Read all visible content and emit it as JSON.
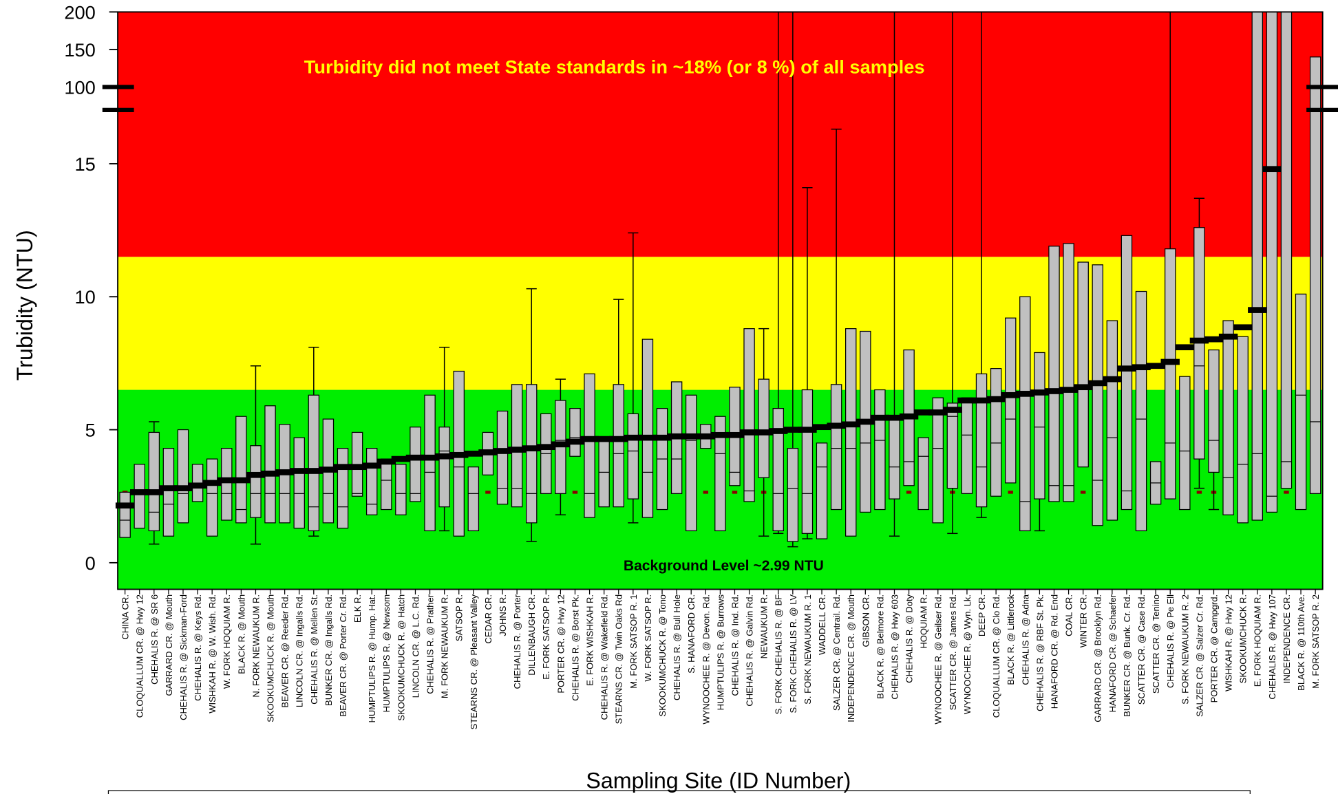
{
  "chart_data": {
    "type": "box",
    "title": "Turbidity did not meet State standards in ~18% (or 8 %) of all samples",
    "annotation": "Background Level ~2.99 NTU",
    "x_label": "Sampling Site (ID Number)",
    "y_label": "Trubidity (NTU)",
    "ylim": [
      -1,
      17
    ],
    "upper_ylim": [
      100,
      200
    ],
    "yticks": [
      0,
      5,
      10,
      15
    ],
    "upper_yticks": [
      100,
      150,
      200
    ],
    "bands": [
      {
        "from": -1,
        "to": 6.5,
        "color": "#00ee00"
      },
      {
        "from": 6.5,
        "to": 11.5,
        "color": "#ffff00"
      },
      {
        "from": 11.5,
        "to": 200,
        "color": "#ff0000"
      }
    ],
    "reference_line": {
      "value": 2.65,
      "color": "#8b0000"
    },
    "box_color": "#c0c0c0",
    "mean_color": "#000000",
    "categories": [
      "CHINA CR.",
      "CLOQUALLUM CR. @ Hwy 12",
      "CHEHALIS R. @ SR 6",
      "GARRARD CR. @ Mouth",
      "CHEHALIS R. @ Sickman-Ford",
      "CHEHALIS R. @ Keys Rd.",
      "WISHKAH R. @ W. Wish. Rd.",
      "W. FORK HOQUIAM R.",
      "BLACK R. @ Mouth",
      "N. FORK NEWAUKUM R.",
      "SKOOKUMCHUCK R. @ Mouth",
      "BEAVER CR. @ Reeder Rd.",
      "LINCOLN CR. @ Ingalls Rd.",
      "CHEHALIS R. @ Mellen St.",
      "BUNKER CR. @ Ingalls Rd.",
      "BEAVER CR. @ Porter Cr. Rd.",
      "ELK R.",
      "HUMPTULIPS R. @ Hump. Hat.",
      "HUMPTULIPS R. @ Newsom",
      "SKOOKUMCHUCK R. @ Hatch",
      "LINCOLN CR. @ L.C. Rd.",
      "CHEHALIS R. @ Prather",
      "M. FORK NEWAUKUM R.",
      "SATSOP R.",
      "STEARNS CR. @ Pleasant Valley",
      "CEDAR CR.",
      "JOHNS R.",
      "CHEHALIS R. @ Porter",
      "DILLENBAUGH CR.",
      "E. FORK SATSOP R.",
      "PORTER CR. @ Hwy 12",
      "CHEHALIS R. @ Borst Pk.",
      "E. FORK WISHKAH R.",
      "CHEHALIS R. @ Wakefield Rd.",
      "STEARNS CR. @ Twin Oaks Rd",
      "M. FORK SATSOP R. 1",
      "W. FORK SATSOP R.",
      "SKOOKUMCHUCK R. @ Tono",
      "CHEHALIS R. @ Bull Hole",
      "S. HANAFORD CR.",
      "WYNOOCHEE R. @ Devon. Rd.",
      "HUMPTULIPS R. @ Burrows",
      "CHEHALIS R. @ Ind. Rd.",
      "CHEHALIS R. @ Galvin Rd.",
      "NEWAUKUM R.",
      "S. FORK CHEHALIS R. @ BF",
      "S. FORK CHEHALIS R. @ LV",
      "S. FORK NEWAUKUM R. 1",
      "WADDELL CR.",
      "SALZER CR. @ Centrail. Rd.",
      "INDEPENDENCE CR. @ Mouth",
      "GIBSON CR.",
      "BLACK R. @ Belmore Rd.",
      "CHEHALIS R. @ Hwy 603",
      "CHEHALIS R. @ Doty",
      "HOQUIAM R.",
      "WYNOOCHEE R. @ Geilser Rd.",
      "SCATTER CR. @ James Rd.",
      "WYNOOCHEE R. @ Wyn. Lk.",
      "DEEP CR.",
      "CLOQUALLUM CR. @ Clo Rd.",
      "BLACK R. @ Littlerock",
      "CHEHALIS R. @ Adna",
      "CHEHALIS R. @ RBF St. Pk.",
      "HANAFORD CR. @ Rd. End",
      "COAL CR.",
      "WINTER CR.",
      "GARRARD CR. @ Brooklyn Rd.",
      "HANAFORD CR. @ Schaefer",
      "BUNKER CR. @ Bunk. Cr. Rd.",
      "SCATTER CR. @ Case Rd.",
      "SCATTER CR. @ Tenino",
      "CHEHALIS R. @ Pe Ell",
      "S. FORK NEWAUKUM R. 2",
      "SALZER CR. @ Salzer Cr. Rd.",
      "PORTER CR. @ Campgrd.",
      "WISHKAH R. @ Hwy 12",
      "SKOOKUMCHUCK R.",
      "E. FORK HOQUIAM R.",
      "CHEHALIS R. @ Hwy 107",
      "INDEPENDENCE CR.",
      "BLACK R. @ 110th Ave.",
      "M. FORK SATSOP R. 2"
    ],
    "mean": [
      2.15,
      2.65,
      2.65,
      2.8,
      2.8,
      2.9,
      3.0,
      3.1,
      3.1,
      3.3,
      3.35,
      3.4,
      3.45,
      3.45,
      3.5,
      3.6,
      3.6,
      3.65,
      3.8,
      3.9,
      3.95,
      3.95,
      4.0,
      4.05,
      4.1,
      4.15,
      4.2,
      4.25,
      4.3,
      4.35,
      4.45,
      4.55,
      4.65,
      4.65,
      4.65,
      4.7,
      4.7,
      4.7,
      4.75,
      4.75,
      4.75,
      4.8,
      4.8,
      4.9,
      4.9,
      4.95,
      5.0,
      5.0,
      5.1,
      5.15,
      5.2,
      5.3,
      5.45,
      5.45,
      5.5,
      5.65,
      5.65,
      5.75,
      6.1,
      6.1,
      6.15,
      6.3,
      6.35,
      6.4,
      6.45,
      6.5,
      6.6,
      6.75,
      6.9,
      7.3,
      7.35,
      7.4,
      7.55,
      8.1,
      8.35,
      8.4,
      8.5,
      8.85,
      9.5,
      14.8,
      null,
      null,
      null
    ],
    "q1": [
      0.95,
      1.3,
      1.2,
      1.0,
      1.5,
      2.3,
      1.0,
      1.6,
      1.5,
      1.7,
      1.5,
      1.5,
      1.3,
      1.2,
      1.5,
      1.3,
      2.5,
      1.8,
      2.0,
      1.8,
      2.3,
      1.2,
      2.1,
      1.0,
      1.2,
      3.3,
      2.2,
      2.1,
      1.5,
      2.6,
      2.6,
      4.0,
      1.7,
      2.1,
      2.1,
      2.4,
      1.7,
      2.0,
      2.6,
      1.2,
      4.3,
      1.2,
      2.9,
      2.3,
      3.2,
      1.2,
      0.8,
      1.1,
      0.9,
      2.0,
      1.0,
      1.9,
      2.0,
      2.4,
      2.9,
      2.0,
      1.5,
      2.8,
      2.6,
      2.1,
      2.5,
      3.0,
      1.2,
      2.4,
      2.3,
      2.3,
      3.6,
      1.4,
      1.6,
      2.0,
      1.2,
      2.2,
      2.4,
      2.0,
      3.9,
      3.4,
      1.8,
      1.5,
      1.6,
      1.9,
      2.8,
      2.0,
      2.6
    ],
    "median": [
      1.6,
      2.6,
      1.9,
      2.2,
      2.6,
      2.9,
      2.6,
      2.6,
      2.0,
      2.6,
      2.6,
      2.6,
      2.6,
      2.1,
      2.6,
      2.1,
      2.6,
      2.2,
      3.1,
      2.6,
      2.6,
      3.4,
      4.2,
      3.6,
      2.6,
      4.1,
      2.8,
      2.8,
      2.6,
      4.1,
      4.6,
      4.7,
      2.6,
      3.4,
      4.1,
      4.2,
      3.4,
      3.9,
      3.9,
      4.6,
      4.7,
      4.1,
      3.4,
      2.7,
      4.9,
      2.6,
      2.8,
      2.6,
      3.6,
      4.3,
      4.3,
      4.5,
      4.6,
      3.6,
      3.8,
      4.0,
      4.3,
      5.5,
      4.8,
      3.6,
      4.5,
      5.4,
      2.3,
      5.1,
      2.9,
      2.9,
      6.6,
      3.1,
      4.7,
      2.7,
      5.4,
      3.0,
      4.5,
      4.2,
      7.4,
      4.6,
      3.2,
      3.7,
      4.1,
      2.5,
      3.8,
      6.3,
      5.3
    ],
    "q3": [
      2.65,
      3.7,
      4.9,
      4.3,
      5.0,
      3.7,
      3.9,
      4.3,
      5.5,
      4.4,
      5.9,
      5.2,
      4.7,
      6.3,
      5.4,
      4.3,
      4.9,
      4.3,
      3.9,
      3.7,
      5.1,
      6.3,
      5.1,
      7.2,
      3.6,
      4.9,
      5.7,
      6.7,
      6.7,
      5.6,
      6.1,
      5.8,
      7.1,
      4.6,
      6.7,
      5.6,
      8.4,
      5.8,
      6.8,
      6.3,
      5.2,
      5.5,
      6.6,
      8.8,
      6.9,
      5.8,
      4.3,
      6.5,
      4.5,
      6.7,
      8.8,
      8.7,
      6.5,
      5.5,
      8.0,
      4.7,
      6.2,
      6.0,
      6.2,
      7.1,
      7.3,
      9.2,
      10.0,
      7.9,
      11.9,
      12.0,
      11.3,
      11.2,
      9.1,
      12.3,
      10.2,
      3.8,
      11.8,
      7.0,
      12.6,
      8.0,
      9.1,
      8.5,
      200,
      200,
      200,
      10.1,
      140
    ],
    "whisker_low": [
      null,
      null,
      0.7,
      null,
      null,
      null,
      null,
      null,
      null,
      0.7,
      null,
      null,
      null,
      1.0,
      null,
      null,
      null,
      null,
      null,
      null,
      null,
      null,
      1.2,
      null,
      null,
      null,
      null,
      null,
      0.8,
      null,
      1.8,
      null,
      null,
      null,
      null,
      1.5,
      null,
      null,
      null,
      null,
      null,
      null,
      null,
      null,
      1.0,
      1.1,
      0.6,
      0.9,
      null,
      null,
      null,
      null,
      null,
      1.0,
      null,
      null,
      null,
      1.1,
      null,
      1.7,
      null,
      null,
      null,
      1.2,
      null,
      null,
      null,
      null,
      null,
      null,
      null,
      null,
      null,
      null,
      2.8,
      2.0,
      null,
      null,
      null,
      null,
      null,
      null,
      null
    ],
    "whisker_high": [
      null,
      null,
      5.3,
      null,
      null,
      null,
      null,
      null,
      null,
      7.4,
      null,
      null,
      null,
      8.1,
      null,
      null,
      null,
      null,
      null,
      null,
      null,
      null,
      8.1,
      null,
      null,
      null,
      null,
      null,
      10.3,
      null,
      6.9,
      null,
      null,
      null,
      9.9,
      12.4,
      null,
      null,
      null,
      null,
      null,
      null,
      null,
      null,
      8.8,
      200,
      200,
      14.1,
      null,
      16.3,
      null,
      null,
      null,
      200,
      null,
      null,
      null,
      200,
      null,
      200,
      null,
      null,
      null,
      null,
      null,
      null,
      null,
      null,
      null,
      null,
      null,
      null,
      200,
      null,
      13.7,
      null,
      null,
      null,
      null,
      200,
      null,
      null,
      null
    ]
  }
}
